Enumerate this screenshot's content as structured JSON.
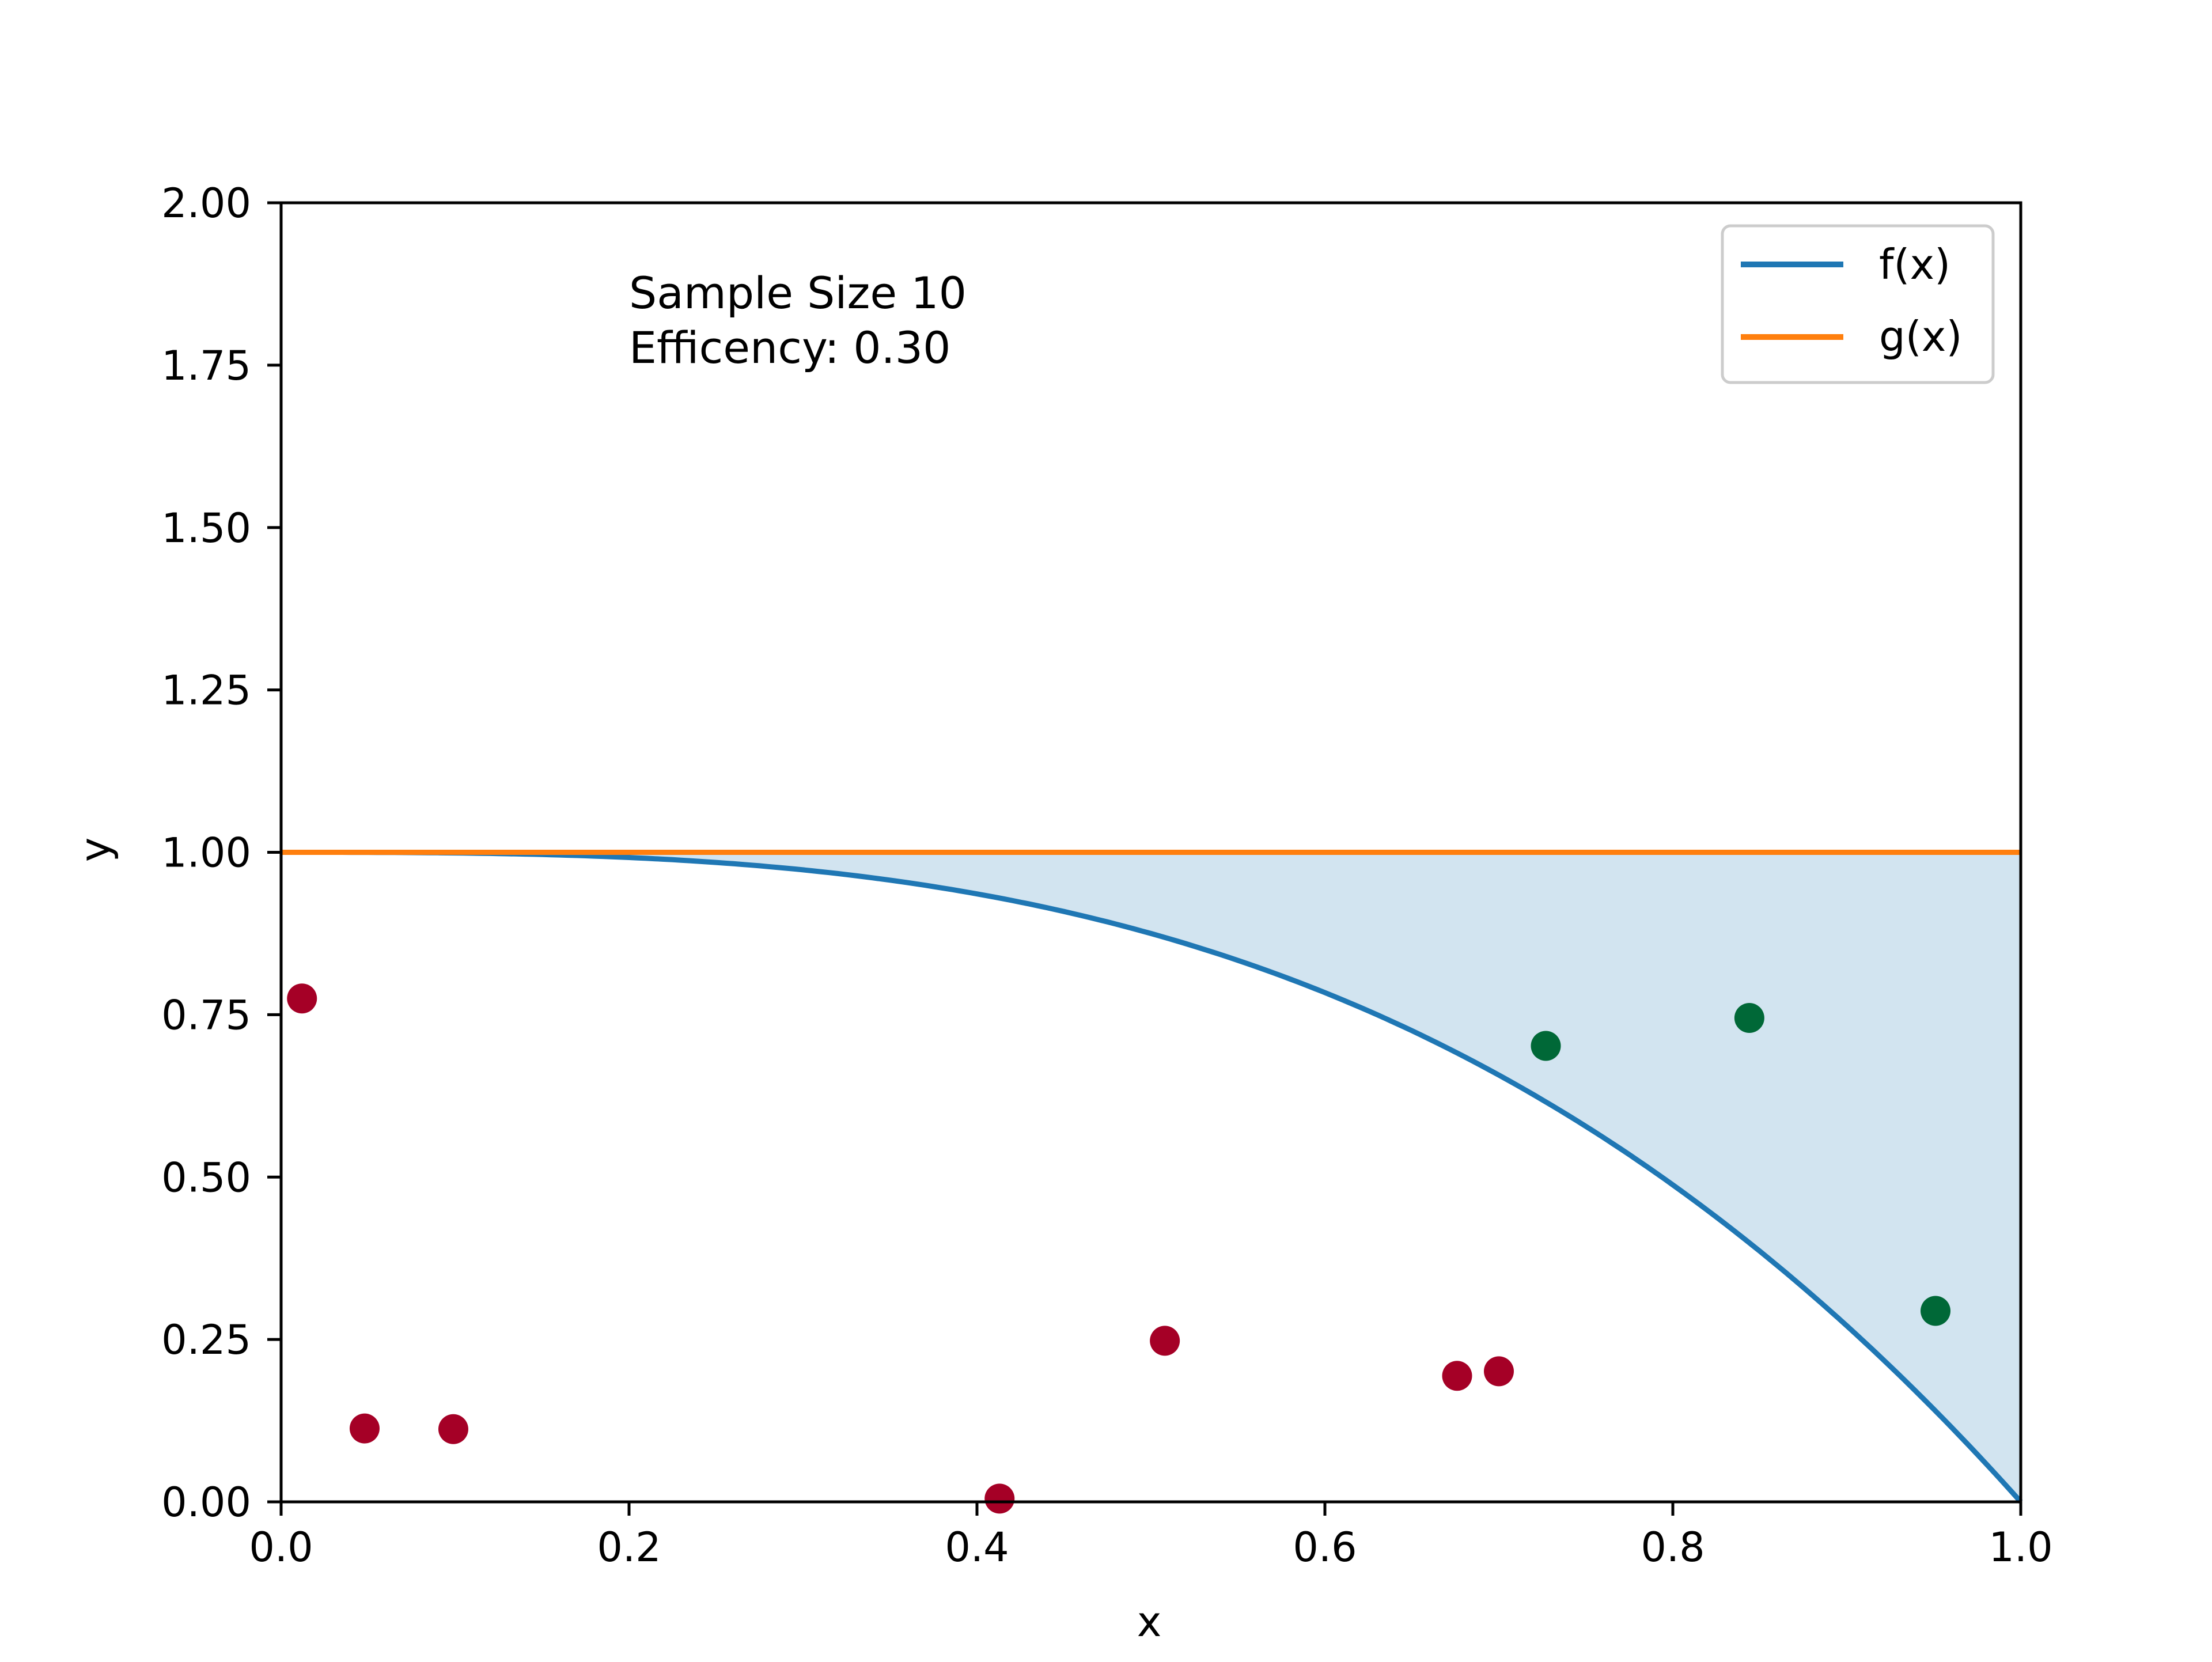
{
  "chart_data": {
    "type": "scatter",
    "title": "",
    "xlabel": "x",
    "ylabel": "y",
    "xlim": [
      0.0,
      1.0
    ],
    "ylim": [
      0.0,
      2.0
    ],
    "x_ticks": [
      "0.0",
      "0.2",
      "0.4",
      "0.6",
      "0.8",
      "1.0"
    ],
    "y_ticks": [
      "0.00",
      "0.25",
      "0.50",
      "0.75",
      "1.00",
      "1.25",
      "1.50",
      "1.75",
      "2.00"
    ],
    "grid": false,
    "legend_position": "top-right",
    "annotation_lines": [
      "Sample Size 10",
      "Efficency: 0.30"
    ],
    "series": [
      {
        "name": "f(x)",
        "type": "line",
        "color": "#1f77b4",
        "function": "1 - x^3",
        "x": [
          0.0,
          0.1,
          0.2,
          0.3,
          0.4,
          0.5,
          0.6,
          0.7,
          0.8,
          0.9,
          1.0
        ],
        "y": [
          1.0,
          0.999,
          0.992,
          0.973,
          0.936,
          0.875,
          0.784,
          0.657,
          0.488,
          0.271,
          0.0
        ]
      },
      {
        "name": "g(x)",
        "type": "line",
        "color": "#ff7f0e",
        "x": [
          0.0,
          1.0
        ],
        "y": [
          1.0,
          1.0
        ]
      }
    ],
    "fill_between": {
      "upper": "g(x)",
      "lower": "f(x)",
      "color": "#1f77b4",
      "opacity": 0.2
    },
    "rejected_points": {
      "color": "#a50026",
      "x": [
        0.012,
        0.048,
        0.099,
        0.413,
        0.508,
        0.676,
        0.7
      ],
      "y": [
        0.775,
        0.113,
        0.112,
        0.005,
        0.248,
        0.194,
        0.201
      ]
    },
    "accepted_points": {
      "color": "#006837",
      "x": [
        0.727,
        0.844,
        0.951
      ],
      "y": [
        0.702,
        0.745,
        0.294
      ]
    }
  }
}
